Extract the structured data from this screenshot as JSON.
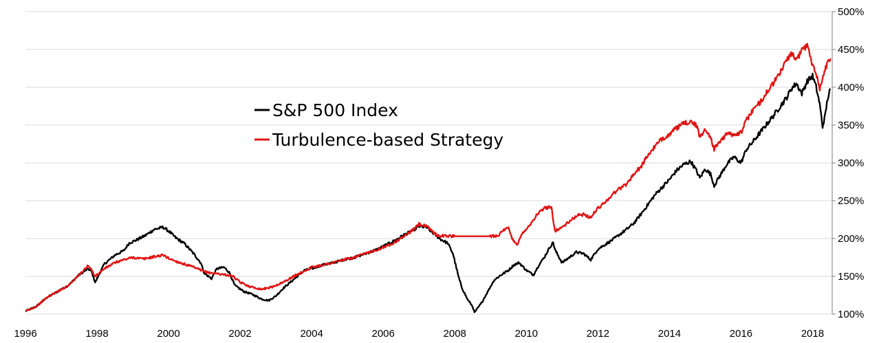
{
  "chart_data": {
    "type": "line",
    "title": "",
    "xlabel": "",
    "ylabel": "",
    "xlim": [
      1996.0,
      2018.55
    ],
    "ylim": [
      100,
      500
    ],
    "grid": "horizontal",
    "legend_position": "upper-left-center",
    "x_ticks": [
      "1996",
      "1998",
      "2000",
      "2002",
      "2004",
      "2006",
      "2008",
      "2010",
      "2012",
      "2014",
      "2016",
      "2018"
    ],
    "y_ticks": [
      "100%",
      "150%",
      "200%",
      "250%",
      "300%",
      "350%",
      "400%",
      "450%",
      "500%"
    ],
    "y_tick_values": [
      100,
      150,
      200,
      250,
      300,
      350,
      400,
      450,
      500
    ],
    "series": [
      {
        "name": "S&P 500 Index",
        "color": "#000000",
        "x": [
          1996.0,
          1996.3,
          1996.6,
          1996.9,
          1997.2,
          1997.5,
          1997.75,
          1997.85,
          1997.95,
          1998.2,
          1998.5,
          1998.75,
          1998.9,
          1999.1,
          1999.35,
          1999.6,
          1999.85,
          2000.0,
          2000.2,
          2000.45,
          2000.7,
          2000.9,
          2001.0,
          2001.2,
          2001.35,
          2001.55,
          2001.7,
          2001.85,
          2002.1,
          2002.35,
          2002.6,
          2002.8,
          2003.0,
          2003.2,
          2003.4,
          2003.6,
          2003.8,
          2004.0,
          2004.3,
          2004.6,
          2004.9,
          2005.2,
          2005.5,
          2005.8,
          2006.1,
          2006.35,
          2006.55,
          2006.8,
          2007.0,
          2007.2,
          2007.45,
          2007.6,
          2007.8,
          2007.95,
          2008.1,
          2008.2,
          2008.35,
          2008.5,
          2008.55,
          2008.75,
          2008.9,
          2009.1,
          2009.3,
          2009.5,
          2009.65,
          2009.8,
          2010.0,
          2010.2,
          2010.35,
          2010.5,
          2010.65,
          2010.75,
          2010.8,
          2011.0,
          2011.2,
          2011.4,
          2011.6,
          2011.8,
          2012.0,
          2012.2,
          2012.4,
          2012.6,
          2012.8,
          2013.0,
          2013.2,
          2013.4,
          2013.6,
          2013.8,
          2014.0,
          2014.2,
          2014.4,
          2014.6,
          2014.75,
          2014.85,
          2015.0,
          2015.15,
          2015.25,
          2015.4,
          2015.6,
          2015.8,
          2016.0,
          2016.15,
          2016.3,
          2016.5,
          2016.7,
          2016.9,
          2017.1,
          2017.3,
          2017.4,
          2017.55,
          2017.7,
          2017.85,
          2018.0,
          2018.1,
          2018.2,
          2018.28,
          2018.35,
          2018.42,
          2018.5
        ],
        "values": [
          104,
          110,
          122,
          130,
          138,
          152,
          160,
          156,
          142,
          166,
          178,
          184,
          194,
          198,
          204,
          212,
          215,
          210,
          201,
          193,
          180,
          168,
          154,
          147,
          160,
          162,
          155,
          138,
          130,
          126,
          120,
          118,
          124,
          134,
          142,
          150,
          158,
          160,
          165,
          168,
          172,
          175,
          180,
          185,
          192,
          198,
          204,
          210,
          216,
          215,
          205,
          199,
          194,
          180,
          150,
          135,
          120,
          110,
          102,
          115,
          128,
          145,
          152,
          158,
          165,
          168,
          158,
          152,
          165,
          175,
          188,
          195,
          185,
          168,
          175,
          182,
          180,
          172,
          186,
          192,
          198,
          205,
          212,
          220,
          232,
          245,
          258,
          268,
          278,
          290,
          298,
          302,
          290,
          280,
          292,
          285,
          270,
          282,
          298,
          308,
          300,
          318,
          326,
          338,
          350,
          362,
          375,
          388,
          398,
          405,
          392,
          408,
          415,
          400,
          378,
          348,
          362,
          385,
          398
        ]
      },
      {
        "name": "Turbulence-based Strategy",
        "color": "#e11414",
        "x": [
          1996.0,
          1996.3,
          1996.6,
          1996.9,
          1997.2,
          1997.5,
          1997.75,
          1997.85,
          1997.95,
          1998.2,
          1998.5,
          1998.75,
          1999.0,
          1999.3,
          1999.6,
          1999.85,
          2000.0,
          2000.2,
          2000.45,
          2000.7,
          2000.9,
          2001.1,
          2001.3,
          2001.6,
          2001.8,
          2002.0,
          2002.3,
          2002.6,
          2002.9,
          2003.2,
          2003.5,
          2003.8,
          2004.0,
          2004.3,
          2004.6,
          2004.9,
          2005.2,
          2005.5,
          2005.8,
          2006.1,
          2006.35,
          2006.55,
          2006.8,
          2007.0,
          2007.2,
          2007.35,
          2007.5,
          2008.0,
          2008.5,
          2009.0,
          2009.2,
          2009.35,
          2009.5,
          2009.6,
          2009.75,
          2009.9,
          2010.1,
          2010.3,
          2010.5,
          2010.7,
          2010.8,
          2011.0,
          2011.2,
          2011.4,
          2011.6,
          2011.8,
          2012.0,
          2012.2,
          2012.4,
          2012.6,
          2012.8,
          2013.0,
          2013.2,
          2013.4,
          2013.6,
          2013.8,
          2014.0,
          2014.2,
          2014.4,
          2014.6,
          2014.75,
          2014.85,
          2015.0,
          2015.15,
          2015.25,
          2015.4,
          2015.6,
          2015.8,
          2016.0,
          2016.15,
          2016.3,
          2016.5,
          2016.7,
          2016.9,
          2017.1,
          2017.3,
          2017.4,
          2017.55,
          2017.7,
          2017.85,
          2018.0,
          2018.1,
          2018.2,
          2018.28,
          2018.35,
          2018.42,
          2018.5
        ],
        "values": [
          104,
          110,
          122,
          130,
          138,
          152,
          164,
          158,
          150,
          160,
          168,
          172,
          175,
          173,
          176,
          178,
          174,
          170,
          166,
          162,
          158,
          155,
          154,
          152,
          150,
          142,
          136,
          133,
          136,
          142,
          150,
          157,
          162,
          165,
          168,
          172,
          175,
          180,
          185,
          190,
          196,
          202,
          210,
          219,
          216,
          211,
          204,
          203,
          203,
          203,
          204,
          210,
          214,
          200,
          192,
          208,
          218,
          232,
          240,
          242,
          210,
          215,
          222,
          230,
          232,
          228,
          240,
          248,
          258,
          266,
          272,
          285,
          295,
          310,
          322,
          332,
          338,
          346,
          352,
          355,
          349,
          335,
          344,
          335,
          318,
          328,
          338,
          338,
          340,
          356,
          368,
          378,
          392,
          405,
          420,
          438,
          445,
          435,
          450,
          455,
          430,
          420,
          398,
          410,
          425,
          432,
          438
        ]
      }
    ]
  }
}
